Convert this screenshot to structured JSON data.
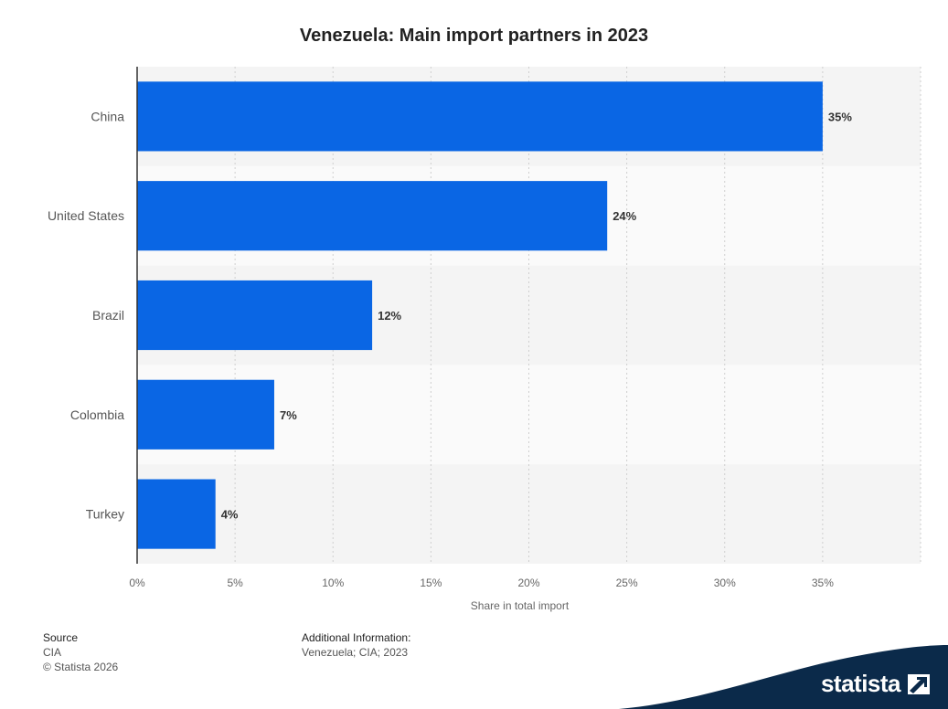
{
  "chart_data": {
    "type": "bar",
    "orientation": "horizontal",
    "title": "Venezuela: Main import partners in 2023",
    "categories": [
      "China",
      "United States",
      "Brazil",
      "Colombia",
      "Turkey"
    ],
    "values": [
      35,
      24,
      12,
      7,
      4
    ],
    "value_labels": [
      "35%",
      "24%",
      "12%",
      "7%",
      "4%"
    ],
    "xlabel": "Share in total import",
    "ylabel": "",
    "xlim": [
      0,
      40
    ],
    "x_ticks": [
      0,
      5,
      10,
      15,
      20,
      25,
      30,
      35,
      40
    ],
    "x_tick_labels": [
      "0%",
      "5%",
      "10%",
      "15%",
      "20%",
      "25%",
      "30%",
      "35%",
      ""
    ],
    "grid": true,
    "bar_color": "#0a66e4",
    "band_colors": [
      "#f4f4f4",
      "#fafafa"
    ]
  },
  "footer": {
    "source_heading": "Source",
    "source_lines": [
      "CIA",
      "© Statista 2026"
    ],
    "additional_heading": "Additional Information:",
    "additional_text": "Venezuela; CIA; 2023"
  },
  "brand": {
    "name": "statista",
    "icon": "statista-logo-icon",
    "color": "#0b2a4a"
  }
}
